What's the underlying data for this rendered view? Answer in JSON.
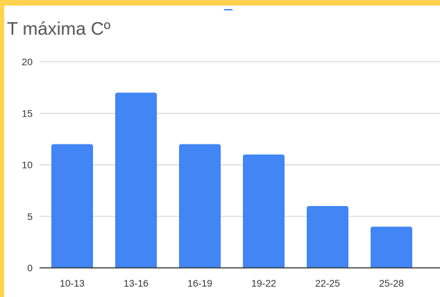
{
  "chart_data": {
    "type": "bar",
    "title": "T máxima Cº",
    "xlabel": "",
    "ylabel": "",
    "categories": [
      "10-13",
      "13-16",
      "16-19",
      "19-22",
      "22-25",
      "25-28"
    ],
    "values": [
      12,
      17,
      12,
      11,
      6,
      4
    ],
    "ylim": [
      0,
      20
    ],
    "yticks": [
      0,
      5,
      10,
      15,
      20
    ],
    "grid": true,
    "legend": "none",
    "bar_color": "#4285f4",
    "grid_color": "#cccccc",
    "axis_color": "#333333"
  }
}
